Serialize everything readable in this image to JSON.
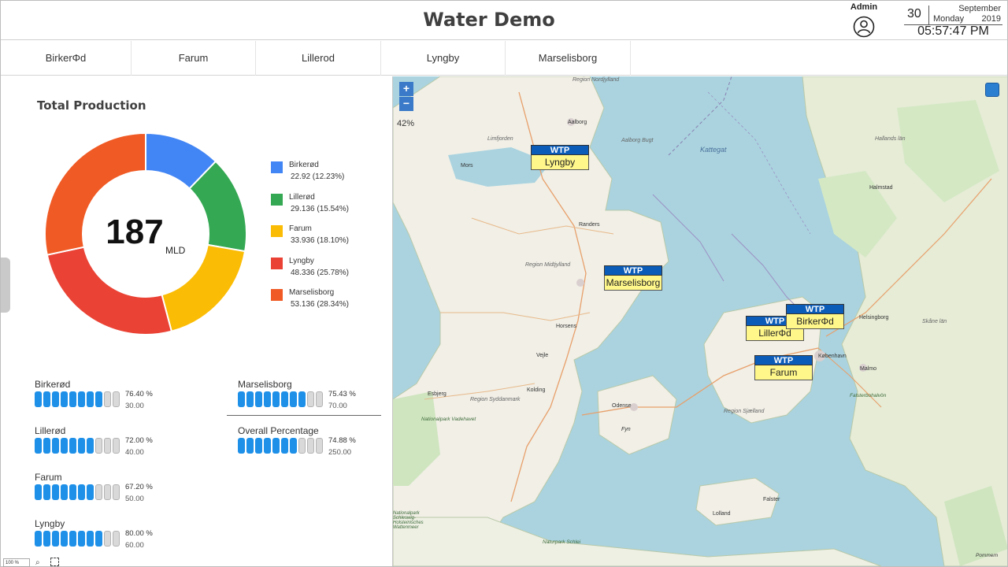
{
  "header": {
    "title": "Water Demo",
    "user_label": "Admin",
    "date": {
      "day": "30",
      "month": "September",
      "weekday": "Monday",
      "year": "2019",
      "time": "05:57:47 PM"
    }
  },
  "tabs": [
    {
      "label": "BirkerΦd"
    },
    {
      "label": "Farum"
    },
    {
      "label": "Lillerod"
    },
    {
      "label": "Lyngby"
    },
    {
      "label": "Marselisborg"
    }
  ],
  "production": {
    "title": "Total Production",
    "total": "187",
    "unit": "MLD",
    "legend": [
      {
        "name": "Birkerød",
        "value": "22.92 (12.23%)",
        "color": "#4285f4"
      },
      {
        "name": "Lillerød",
        "value": "29.136 (15.54%)",
        "color": "#34a853"
      },
      {
        "name": "Farum",
        "value": "33.936 (18.10%)",
        "color": "#fbbc05"
      },
      {
        "name": "Lyngby",
        "value": "48.336 (25.78%)",
        "color": "#ea4335"
      },
      {
        "name": "Marselisborg",
        "value": "53.136 (28.34%)",
        "color": "#f05a24"
      }
    ]
  },
  "meters": [
    {
      "name": "Birkerød",
      "percent_text": "76.40 %",
      "target": "30.00",
      "percent": 76.4
    },
    {
      "name": "Lillerød",
      "percent_text": "72.00 %",
      "target": "40.00",
      "percent": 72.0
    },
    {
      "name": "Farum",
      "percent_text": "67.20 %",
      "target": "50.00",
      "percent": 67.2
    },
    {
      "name": "Lyngby",
      "percent_text": "80.00 %",
      "target": "60.00",
      "percent": 80.0
    },
    {
      "name": "Marselisborg",
      "percent_text": "75.43 %",
      "target": "70.00",
      "percent": 75.43
    },
    {
      "name": "Overall Percentage",
      "percent_text": "74.88 %",
      "target": "250.00",
      "percent": 74.88
    }
  ],
  "zoom": {
    "value": "100 %"
  },
  "map": {
    "zoom_in": "+",
    "zoom_out": "−",
    "zoom_level": "42%",
    "markers": [
      {
        "header": "WTP",
        "name": "Lyngby"
      },
      {
        "header": "WTP",
        "name": "Marselisborg"
      },
      {
        "header": "WTP",
        "name": "LillerΦd"
      },
      {
        "header": "WTP",
        "name": "BirkerΦd"
      },
      {
        "header": "WTP",
        "name": "Farum"
      }
    ],
    "places": {
      "region_nordjylland": "Region Nordjylland",
      "region_midtjylland": "Region Midtjylland",
      "region_syddanmark": "Region Syddanmark",
      "region_sjaelland": "Region Sjælland",
      "kattegat": "Kattegat",
      "aalborg": "Aalborg",
      "randers": "Randers",
      "horsens": "Horsens",
      "vejle": "Vejle",
      "kolding": "Kolding",
      "esbjerg": "Esbjerg",
      "odense": "Odense",
      "fyn": "Fyn",
      "koebenhavn": "København",
      "malmo": "Malmo",
      "helsingborg": "Helsingborg",
      "halmstad": "Halmstad",
      "hallands_lan": "Hallands län",
      "skane_lan": "Skåne län",
      "falster": "Falster",
      "lolland": "Lolland",
      "mors": "Mors",
      "limfjorden": "Limfjorden",
      "aalborg_bugt": "Aalborg Bugt",
      "nationalpark_vadehavet": "Nationalpark Vadehavet",
      "naturpark_schlei": "Naturpark Schlei",
      "nationalpark_wattenmeer": "Nationalpark Schleswig-Holsteinisches Wattenmeer",
      "falsterbohalvon": "Falsterbohalvön",
      "pommern": "Pommern"
    }
  }
}
